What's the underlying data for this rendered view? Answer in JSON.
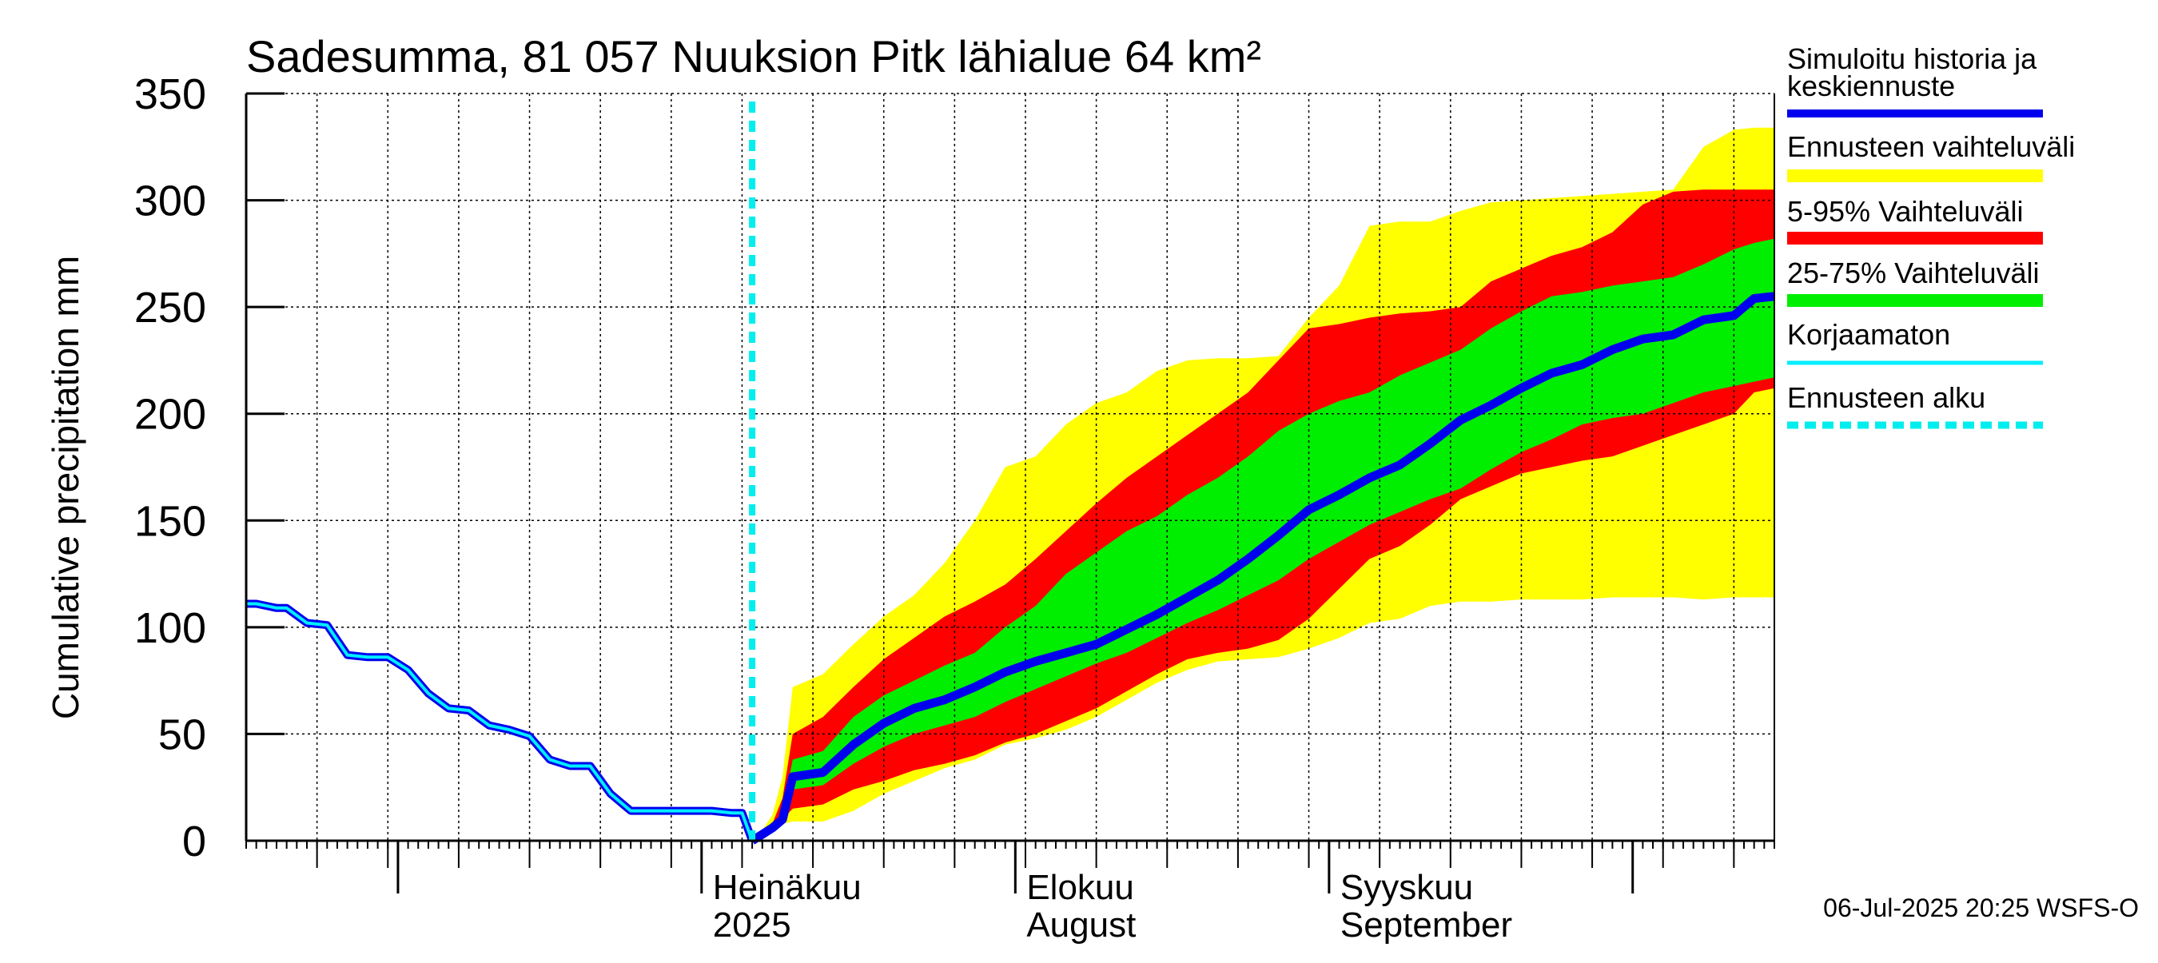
{
  "chart_data": {
    "type": "area",
    "title": "Sadesumma, 81 057 Nuuksion Pitk lähialue 64 km²",
    "ylabel": "Cumulative precipitation   mm",
    "xlabel": "",
    "ylim": [
      0,
      350
    ],
    "yticks": [
      "0",
      "50",
      "100",
      "150",
      "200",
      "250",
      "300",
      "350"
    ],
    "xlim": [
      "2025-05-17",
      "2025-10-15"
    ],
    "x_month_labels": [
      {
        "date": "2025-07-01",
        "line1": "Heinäkuu",
        "line2": "2025"
      },
      {
        "date": "2025-08-01",
        "line1": "Elokuu",
        "line2": "August"
      },
      {
        "date": "2025-09-01",
        "line1": "Syyskuu",
        "line2": "September"
      }
    ],
    "month_boundaries": [
      "2025-06-01",
      "2025-07-01",
      "2025-08-01",
      "2025-09-01",
      "2025-10-01"
    ],
    "grid": true,
    "forecast_start": "2025-07-06",
    "history": {
      "x": [
        "2025-05-17",
        "2025-05-18",
        "2025-05-19",
        "2025-05-20",
        "2025-05-21",
        "2025-05-23",
        "2025-05-25",
        "2025-05-27",
        "2025-05-29",
        "2025-05-31",
        "2025-06-02",
        "2025-06-04",
        "2025-06-06",
        "2025-06-08",
        "2025-06-10",
        "2025-06-12",
        "2025-06-14",
        "2025-06-16",
        "2025-06-18",
        "2025-06-20",
        "2025-06-22",
        "2025-06-24",
        "2025-06-26",
        "2025-06-28",
        "2025-06-30",
        "2025-07-02",
        "2025-07-04",
        "2025-07-05",
        "2025-07-06"
      ],
      "values": [
        111,
        111,
        110,
        109,
        109,
        102,
        101,
        87,
        86,
        86,
        80,
        69,
        62,
        61,
        54,
        52,
        49,
        38,
        35,
        35,
        22,
        14,
        14,
        14,
        14,
        14,
        13,
        13,
        0
      ]
    },
    "series": [
      {
        "name": "Simuloitu historia ja keskiennuste",
        "color": "#0000ee",
        "x": [
          "2025-07-06",
          "2025-07-07",
          "2025-07-08",
          "2025-07-09",
          "2025-07-10",
          "2025-07-13",
          "2025-07-16",
          "2025-07-19",
          "2025-07-22",
          "2025-07-25",
          "2025-07-28",
          "2025-07-31",
          "2025-08-03",
          "2025-08-06",
          "2025-08-09",
          "2025-08-12",
          "2025-08-15",
          "2025-08-18",
          "2025-08-21",
          "2025-08-24",
          "2025-08-27",
          "2025-08-30",
          "2025-09-02",
          "2025-09-05",
          "2025-09-08",
          "2025-09-11",
          "2025-09-14",
          "2025-09-17",
          "2025-09-20",
          "2025-09-23",
          "2025-09-26",
          "2025-09-29",
          "2025-10-02",
          "2025-10-05",
          "2025-10-08",
          "2025-10-11",
          "2025-10-13",
          "2025-10-15"
        ],
        "values": [
          0,
          3,
          6,
          10,
          30,
          32,
          45,
          55,
          62,
          66,
          72,
          79,
          84,
          88,
          92,
          99,
          106,
          114,
          122,
          132,
          143,
          155,
          162,
          170,
          176,
          186,
          197,
          204,
          212,
          219,
          223,
          230,
          235,
          237,
          244,
          246,
          254,
          255
        ]
      },
      {
        "name": "Ennusteen vaihteluväli",
        "color": "#ffff00",
        "x": [
          "2025-07-06",
          "2025-07-07",
          "2025-07-08",
          "2025-07-09",
          "2025-07-10",
          "2025-07-13",
          "2025-07-16",
          "2025-07-19",
          "2025-07-22",
          "2025-07-25",
          "2025-07-28",
          "2025-07-31",
          "2025-08-03",
          "2025-08-06",
          "2025-08-09",
          "2025-08-12",
          "2025-08-15",
          "2025-08-18",
          "2025-08-21",
          "2025-08-24",
          "2025-08-27",
          "2025-08-30",
          "2025-09-02",
          "2025-09-05",
          "2025-09-08",
          "2025-09-11",
          "2025-09-14",
          "2025-09-17",
          "2025-09-20",
          "2025-09-23",
          "2025-09-26",
          "2025-09-29",
          "2025-10-02",
          "2025-10-05",
          "2025-10-08",
          "2025-10-11",
          "2025-10-13",
          "2025-10-15"
        ],
        "lower": [
          0,
          3,
          6,
          8,
          9,
          9,
          14,
          22,
          28,
          34,
          38,
          45,
          48,
          52,
          58,
          66,
          74,
          80,
          84,
          85,
          86,
          90,
          95,
          102,
          104,
          110,
          112,
          112,
          113,
          113,
          113,
          114,
          114,
          114,
          113,
          114,
          114,
          114
        ],
        "upper": [
          0,
          5,
          12,
          30,
          72,
          78,
          92,
          105,
          115,
          130,
          150,
          175,
          180,
          195,
          205,
          210,
          220,
          225,
          226,
          226,
          227,
          245,
          260,
          288,
          290,
          290,
          295,
          299,
          300,
          301,
          302,
          303,
          304,
          305,
          325,
          333,
          334,
          334
        ]
      },
      {
        "name": "5-95% Vaihteluväli",
        "color": "#ff0000",
        "x": [
          "2025-07-06",
          "2025-07-07",
          "2025-07-08",
          "2025-07-09",
          "2025-07-10",
          "2025-07-13",
          "2025-07-16",
          "2025-07-19",
          "2025-07-22",
          "2025-07-25",
          "2025-07-28",
          "2025-07-31",
          "2025-08-03",
          "2025-08-06",
          "2025-08-09",
          "2025-08-12",
          "2025-08-15",
          "2025-08-18",
          "2025-08-21",
          "2025-08-24",
          "2025-08-27",
          "2025-08-30",
          "2025-09-02",
          "2025-09-05",
          "2025-09-08",
          "2025-09-11",
          "2025-09-14",
          "2025-09-17",
          "2025-09-20",
          "2025-09-23",
          "2025-09-26",
          "2025-09-29",
          "2025-10-02",
          "2025-10-05",
          "2025-10-08",
          "2025-10-11",
          "2025-10-13",
          "2025-10-15"
        ],
        "lower": [
          0,
          3,
          6,
          10,
          15,
          17,
          24,
          28,
          33,
          36,
          40,
          46,
          50,
          56,
          62,
          70,
          78,
          85,
          88,
          90,
          94,
          104,
          118,
          132,
          138,
          148,
          160,
          166,
          172,
          175,
          178,
          180,
          185,
          190,
          195,
          200,
          210,
          212
        ],
        "upper": [
          0,
          3,
          8,
          20,
          50,
          58,
          72,
          85,
          95,
          105,
          112,
          120,
          132,
          145,
          158,
          170,
          180,
          190,
          200,
          210,
          225,
          240,
          242,
          245,
          247,
          248,
          250,
          262,
          268,
          274,
          278,
          285,
          298,
          304,
          305,
          305,
          305,
          305
        ]
      },
      {
        "name": "25-75% Vaihteluväli",
        "color": "#00ee00",
        "x": [
          "2025-07-06",
          "2025-07-07",
          "2025-07-08",
          "2025-07-09",
          "2025-07-10",
          "2025-07-13",
          "2025-07-16",
          "2025-07-19",
          "2025-07-22",
          "2025-07-25",
          "2025-07-28",
          "2025-07-31",
          "2025-08-03",
          "2025-08-06",
          "2025-08-09",
          "2025-08-12",
          "2025-08-15",
          "2025-08-18",
          "2025-08-21",
          "2025-08-24",
          "2025-08-27",
          "2025-08-30",
          "2025-09-02",
          "2025-09-05",
          "2025-09-08",
          "2025-09-11",
          "2025-09-14",
          "2025-09-17",
          "2025-09-20",
          "2025-09-23",
          "2025-09-26",
          "2025-09-29",
          "2025-10-02",
          "2025-10-05",
          "2025-10-08",
          "2025-10-11",
          "2025-10-13",
          "2025-10-15"
        ],
        "lower": [
          0,
          3,
          6,
          10,
          24,
          26,
          36,
          44,
          50,
          54,
          58,
          65,
          71,
          77,
          83,
          88,
          95,
          102,
          108,
          115,
          122,
          132,
          140,
          148,
          154,
          160,
          165,
          174,
          182,
          188,
          195,
          198,
          200,
          205,
          210,
          213,
          215,
          217
        ],
        "upper": [
          0,
          3,
          7,
          14,
          38,
          42,
          58,
          68,
          75,
          82,
          88,
          100,
          110,
          125,
          135,
          145,
          152,
          162,
          170,
          180,
          192,
          200,
          206,
          210,
          218,
          224,
          230,
          240,
          248,
          255,
          257,
          260,
          262,
          264,
          270,
          277,
          280,
          282
        ]
      },
      {
        "name": "Korjaamaton",
        "color": "#00eeff",
        "x": [
          "2025-05-17",
          "2025-05-18",
          "2025-05-19",
          "2025-05-20",
          "2025-05-21",
          "2025-05-23",
          "2025-05-25",
          "2025-05-27",
          "2025-05-29",
          "2025-05-31",
          "2025-06-02",
          "2025-06-04",
          "2025-06-06",
          "2025-06-08",
          "2025-06-10",
          "2025-06-12",
          "2025-06-14",
          "2025-06-16",
          "2025-06-18",
          "2025-06-20",
          "2025-06-22",
          "2025-06-24",
          "2025-06-26",
          "2025-06-28",
          "2025-06-30",
          "2025-07-02",
          "2025-07-04",
          "2025-07-05",
          "2025-07-06"
        ],
        "values": [
          111,
          111,
          110,
          109,
          109,
          102,
          101,
          87,
          86,
          86,
          80,
          69,
          62,
          61,
          54,
          52,
          49,
          38,
          35,
          35,
          22,
          14,
          14,
          14,
          14,
          14,
          13,
          13,
          0
        ]
      },
      {
        "name": "Ennusteen alku",
        "color": "#00eeee"
      }
    ],
    "legend_placement": "right",
    "footer": "06-Jul-2025 20:25 WSFS-O"
  }
}
